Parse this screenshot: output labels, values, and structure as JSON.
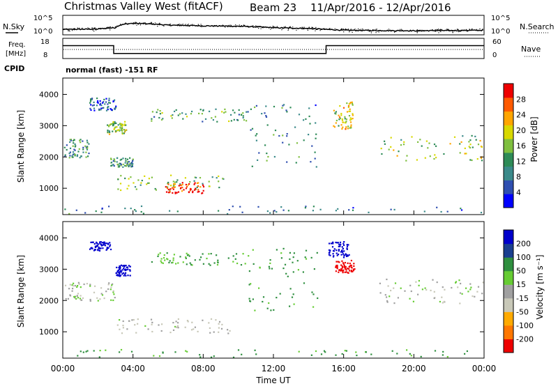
{
  "header": {
    "site": "Christmas Valley West (fitACF)",
    "beam": "Beam 23",
    "dates": "11/Apr/2016 - 12/Apr/2016"
  },
  "top_panels": {
    "nsky_label": "N.Sky",
    "nsearch_label": "N.Search",
    "freq_label_1": "Freq.",
    "freq_label_2": "[MHz]",
    "nave_label": "Nave",
    "cpid_label": "CPID",
    "cpid_text": "normal (fast) -151 RF",
    "noise_left_ticks": [
      "10^5",
      "10^0"
    ],
    "noise_right_ticks": [
      "10^5",
      "10^0"
    ],
    "freq_ticks": [
      "18",
      "8"
    ],
    "nave_ticks": [
      "60",
      "0"
    ]
  },
  "power_panel": {
    "ylabel": "Slant Range [km]",
    "colorbar_label": "Power [dB]",
    "colorbar_ticks": [
      "28",
      "24",
      "20",
      "16",
      "12",
      "8",
      "4"
    ]
  },
  "velocity_panel": {
    "ylabel": "Slant Range [km]",
    "colorbar_label": "Velocity [m s⁻¹]",
    "colorbar_ticks": [
      "200",
      "100",
      "50",
      "15",
      "-15",
      "-50",
      "-100",
      "-200"
    ]
  },
  "xaxis": {
    "label": "Time UT",
    "ticks": [
      "00:00",
      "04:00",
      "08:00",
      "12:00",
      "16:00",
      "20:00",
      "00:00"
    ]
  },
  "colors": {
    "power_scale": [
      "#0000ff",
      "#2f4fb0",
      "#3b8a8a",
      "#2e8b57",
      "#7fbf3f",
      "#d8d800",
      "#ffa500",
      "#ff5a00",
      "#ee0000"
    ],
    "velocity_scale": [
      "#ee0000",
      "#ff7700",
      "#ffaa00",
      "#c8c8b8",
      "#a0a0a0",
      "#66cc33",
      "#2f8f3f",
      "#1a3f8f",
      "#0000cc"
    ]
  },
  "chart_data": [
    {
      "type": "line",
      "name": "noise",
      "x_range_hours": [
        0,
        24
      ],
      "ylim": [
        1,
        100000
      ],
      "scale": "log",
      "series": [
        {
          "x": [
            0,
            2,
            3,
            4,
            6,
            8,
            10,
            12,
            14,
            15,
            16,
            18,
            20,
            22,
            24
          ],
          "values": [
            20,
            25,
            60,
            1000,
            300,
            200,
            150,
            60,
            35,
            20,
            12,
            10,
            9,
            10,
            12
          ]
        }
      ]
    },
    {
      "type": "line",
      "name": "frequency",
      "x_range_hours": [
        0,
        24
      ],
      "ylim": [
        8,
        18
      ],
      "series": [
        {
          "x": [
            0,
            2.9,
            2.9,
            15.0,
            15.0,
            24
          ],
          "values": [
            14.5,
            14.5,
            10.3,
            10.3,
            14.5,
            14.5
          ]
        }
      ]
    },
    {
      "type": "heatmap",
      "name": "power",
      "x_range_hours": [
        0,
        24
      ],
      "ylim": [
        180,
        4500
      ],
      "value_range": [
        0,
        30
      ],
      "regions": [
        {
          "label": "A",
          "t": [
            0.0,
            1.5
          ],
          "r": [
            2000,
            2600
          ],
          "power": 10
        },
        {
          "label": "B",
          "t": [
            1.5,
            3.0
          ],
          "r": [
            3500,
            3900
          ],
          "power": 7
        },
        {
          "label": "C",
          "t": [
            2.5,
            3.6
          ],
          "r": [
            2750,
            3150
          ],
          "power": 15
        },
        {
          "label": "D",
          "t": [
            2.7,
            4.0
          ],
          "r": [
            1700,
            2000
          ],
          "power": 10
        },
        {
          "label": "E",
          "t": [
            3.0,
            9.2
          ],
          "r": [
            950,
            1450
          ],
          "power": 14
        },
        {
          "label": "F",
          "t": [
            5.8,
            8.0
          ],
          "r": [
            850,
            1200
          ],
          "power": 28
        },
        {
          "label": "G",
          "t": [
            5.0,
            10.5
          ],
          "r": [
            3150,
            3550
          ],
          "power": 12
        },
        {
          "label": "H",
          "t": [
            10.5,
            14.5
          ],
          "r": [
            1700,
            3700
          ],
          "power": 9
        },
        {
          "label": "I",
          "t": [
            15.3,
            16.5
          ],
          "r": [
            2900,
            3800
          ],
          "power": 18
        },
        {
          "label": "J",
          "t": [
            18.0,
            24.0
          ],
          "r": [
            1900,
            2700
          ],
          "power": 15
        },
        {
          "label": "K",
          "t": [
            0.0,
            24.0
          ],
          "r": [
            180,
            450
          ],
          "power": 8
        }
      ]
    },
    {
      "type": "heatmap",
      "name": "velocity",
      "x_range_hours": [
        0,
        24
      ],
      "ylim": [
        180,
        4500
      ],
      "value_range": [
        -200,
        200
      ],
      "regions": [
        {
          "label": "A",
          "t": [
            0.0,
            3.0
          ],
          "r": [
            2000,
            2600
          ],
          "velocity": 0
        },
        {
          "label": "B",
          "t": [
            1.5,
            2.7
          ],
          "r": [
            3600,
            3900
          ],
          "velocity": 180
        },
        {
          "label": "C",
          "t": [
            3.0,
            3.8
          ],
          "r": [
            2800,
            3150
          ],
          "velocity": 200
        },
        {
          "label": "D",
          "t": [
            3.0,
            9.5
          ],
          "r": [
            950,
            1450
          ],
          "velocity": -10
        },
        {
          "label": "E",
          "t": [
            5.0,
            10.5
          ],
          "r": [
            3150,
            3550
          ],
          "velocity": 30
        },
        {
          "label": "F",
          "t": [
            10.5,
            14.5
          ],
          "r": [
            1700,
            3700
          ],
          "velocity": 40
        },
        {
          "label": "G",
          "t": [
            15.1,
            16.3
          ],
          "r": [
            3400,
            3900
          ],
          "velocity": 200
        },
        {
          "label": "H",
          "t": [
            15.5,
            16.6
          ],
          "r": [
            2900,
            3300
          ],
          "velocity": -180
        },
        {
          "label": "I",
          "t": [
            18.0,
            24.0
          ],
          "r": [
            1900,
            2700
          ],
          "velocity": 0
        },
        {
          "label": "J",
          "t": [
            0.0,
            24.0
          ],
          "r": [
            180,
            450
          ],
          "velocity": 40
        }
      ]
    }
  ]
}
